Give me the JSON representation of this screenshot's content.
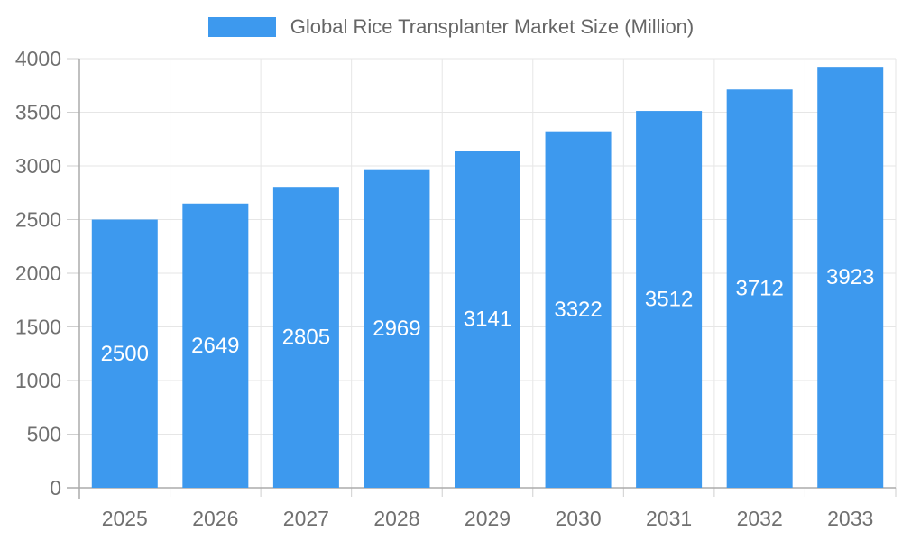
{
  "legend": {
    "label": "Global Rice Transplanter Market Size (Million)"
  },
  "chart_data": {
    "type": "bar",
    "categories": [
      "2025",
      "2026",
      "2027",
      "2028",
      "2029",
      "2030",
      "2031",
      "2032",
      "2033"
    ],
    "values": [
      2500,
      2649,
      2805,
      2969,
      3141,
      3322,
      3512,
      3712,
      3923
    ],
    "title": "Global Rice Transplanter Market Size (Million)",
    "xlabel": "",
    "ylabel": "",
    "ylim": [
      0,
      4000
    ],
    "ytick_step": 500,
    "ytick_labels": [
      "0",
      "500",
      "1000",
      "1500",
      "2000",
      "2500",
      "3000",
      "3500",
      "4000"
    ],
    "grid": true,
    "legend_position": "top-center",
    "value_label_position": "inside-middle"
  },
  "colors": {
    "bar": "#3D99EE",
    "value_label_text": "#FFFFFF",
    "axis_text": "#707070",
    "legend_text": "#666666",
    "gridline": "#E6E6E6",
    "tick": "#CFCFCF",
    "axis_line": "#ABABAB",
    "background": "#FFFFFF"
  }
}
